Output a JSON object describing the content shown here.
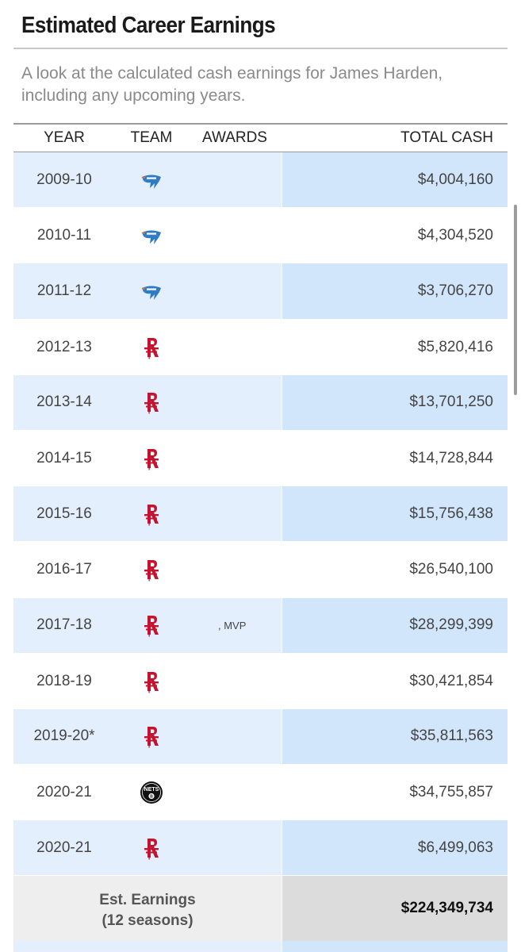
{
  "header": {
    "title": "Estimated Career Earnings",
    "subtitle": "A look at the calculated cash earnings for James Harden, including any upcoming years."
  },
  "table": {
    "columns": {
      "year": "YEAR",
      "team": "TEAM",
      "awards": "AWARDS",
      "cash": "TOTAL CASH"
    },
    "rows": [
      {
        "year": "2009-10",
        "team_logo": "thunder-logo-icon",
        "awards": "",
        "cash": "$4,004,160"
      },
      {
        "year": "2010-11",
        "team_logo": "thunder-logo-icon",
        "awards": "",
        "cash": "$4,304,520"
      },
      {
        "year": "2011-12",
        "team_logo": "thunder-logo-icon",
        "awards": "",
        "cash": "$3,706,270"
      },
      {
        "year": "2012-13",
        "team_logo": "rockets-logo-icon",
        "awards": "",
        "cash": "$5,820,416"
      },
      {
        "year": "2013-14",
        "team_logo": "rockets-logo-icon",
        "awards": "",
        "cash": "$13,701,250"
      },
      {
        "year": "2014-15",
        "team_logo": "rockets-logo-icon",
        "awards": "",
        "cash": "$14,728,844"
      },
      {
        "year": "2015-16",
        "team_logo": "rockets-logo-icon",
        "awards": "",
        "cash": "$15,756,438"
      },
      {
        "year": "2016-17",
        "team_logo": "rockets-logo-icon",
        "awards": "",
        "cash": "$26,540,100"
      },
      {
        "year": "2017-18",
        "team_logo": "rockets-logo-icon",
        "awards": ", MVP",
        "cash": "$28,299,399"
      },
      {
        "year": "2018-19",
        "team_logo": "rockets-logo-icon",
        "awards": "",
        "cash": "$30,421,854"
      },
      {
        "year": "2019-20*",
        "team_logo": "rockets-logo-icon",
        "awards": "",
        "cash": "$35,811,563"
      },
      {
        "year": "2020-21",
        "team_logo": "nets-logo-icon",
        "awards": "",
        "cash": "$34,755,857"
      },
      {
        "year": "2020-21",
        "team_logo": "rockets-logo-icon",
        "awards": "",
        "cash": "$6,499,063"
      }
    ],
    "total": {
      "label_line1": "Est. Earnings",
      "label_line2": "(12 seasons)",
      "value": "$224,349,734"
    }
  },
  "colors": {
    "row_alt_left": "#e3effc",
    "row_alt_right": "#d1e5fb",
    "rockets_red": "#c4122f",
    "thunder_blue": "#2e7bc4",
    "thunder_orange": "#ef6a3b",
    "nets_black": "#111111"
  }
}
